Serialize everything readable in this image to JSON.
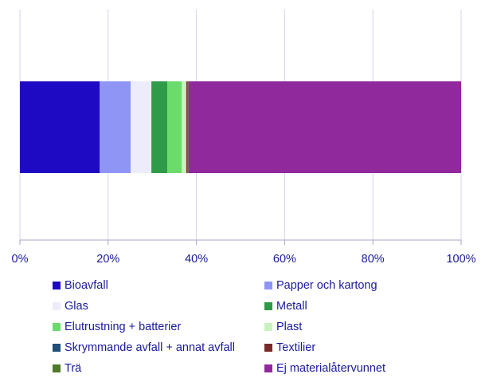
{
  "chart_data": {
    "type": "bar",
    "orientation": "horizontal",
    "stacked": true,
    "categories": [
      ""
    ],
    "xlim": [
      0,
      100
    ],
    "xticks": [
      "0%",
      "20%",
      "40%",
      "60%",
      "80%",
      "100%"
    ],
    "grid": true,
    "legend_position": "bottom",
    "series": [
      {
        "name": "Bioavfall",
        "values": [
          18.1
        ],
        "color": "#1f0ac4"
      },
      {
        "name": "Papper och kartong",
        "values": [
          7.0
        ],
        "color": "#8f95f5"
      },
      {
        "name": "Glas",
        "values": [
          4.7
        ],
        "color": "#ececfa"
      },
      {
        "name": "Metall",
        "values": [
          3.6
        ],
        "color": "#2f9a48"
      },
      {
        "name": "Elutrustning + batterier",
        "values": [
          3.3
        ],
        "color": "#6bdb6b"
      },
      {
        "name": "Plast",
        "values": [
          1.0
        ],
        "color": "#caf2c0"
      },
      {
        "name": "Skrymmande avfall + annat avfall",
        "values": [
          0.0
        ],
        "color": "#1e4e79"
      },
      {
        "name": "Textilier",
        "values": [
          0.2
        ],
        "color": "#7a2a2a"
      },
      {
        "name": "Trä",
        "values": [
          0.3
        ],
        "color": "#4e7a2a"
      },
      {
        "name": "Ej materialåtervunnet",
        "values": [
          61.8
        ],
        "color": "#902a9c"
      }
    ]
  }
}
